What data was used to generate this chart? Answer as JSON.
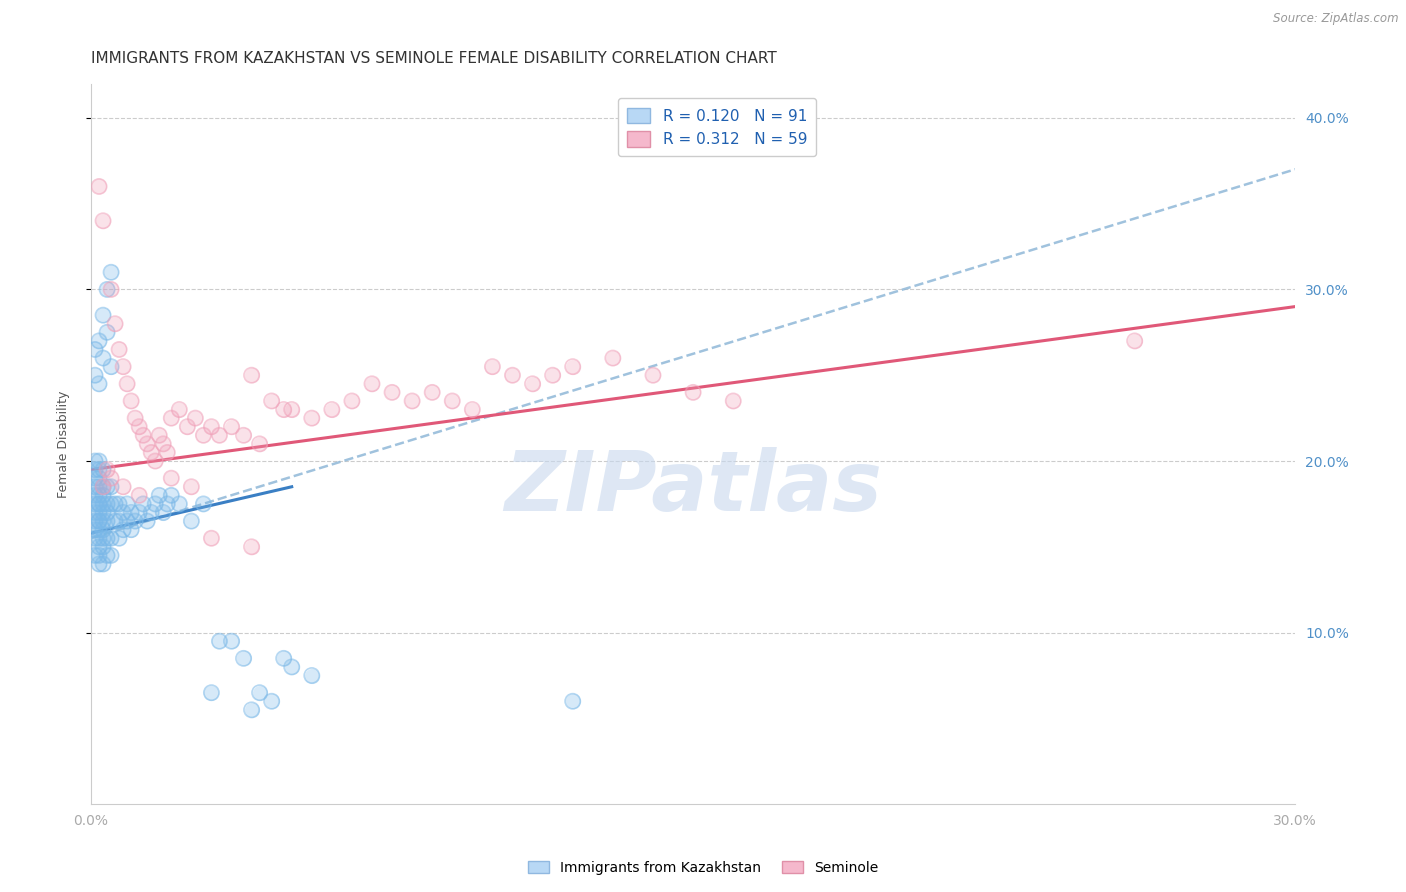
{
  "title": "IMMIGRANTS FROM KAZAKHSTAN VS SEMINOLE FEMALE DISABILITY CORRELATION CHART",
  "source": "Source: ZipAtlas.com",
  "ylabel": "Female Disability",
  "xlim": [
    0.0,
    0.3
  ],
  "ylim": [
    0.0,
    0.42
  ],
  "yticks": [
    0.1,
    0.2,
    0.3,
    0.4
  ],
  "ytick_labels": [
    "10.0%",
    "20.0%",
    "30.0%",
    "40.0%"
  ],
  "xticks": [
    0.0,
    0.05,
    0.1,
    0.15,
    0.2,
    0.25,
    0.3
  ],
  "xtick_labels": [
    "0.0%",
    "",
    "",
    "",
    "",
    "",
    "30.0%"
  ],
  "watermark": "ZIPatlas",
  "blue_scatter_x": [
    0.001,
    0.001,
    0.001,
    0.001,
    0.001,
    0.001,
    0.001,
    0.001,
    0.001,
    0.001,
    0.001,
    0.002,
    0.002,
    0.002,
    0.002,
    0.002,
    0.002,
    0.002,
    0.002,
    0.002,
    0.002,
    0.002,
    0.002,
    0.002,
    0.002,
    0.002,
    0.003,
    0.003,
    0.003,
    0.003,
    0.003,
    0.003,
    0.003,
    0.003,
    0.003,
    0.003,
    0.004,
    0.004,
    0.004,
    0.004,
    0.004,
    0.004,
    0.005,
    0.005,
    0.005,
    0.005,
    0.006,
    0.006,
    0.007,
    0.007,
    0.007,
    0.008,
    0.008,
    0.009,
    0.009,
    0.01,
    0.01,
    0.011,
    0.012,
    0.013,
    0.014,
    0.015,
    0.016,
    0.017,
    0.018,
    0.019,
    0.02,
    0.022,
    0.025,
    0.028,
    0.03,
    0.032,
    0.035,
    0.038,
    0.04,
    0.042,
    0.045,
    0.048,
    0.05,
    0.055,
    0.001,
    0.002,
    0.003,
    0.004,
    0.005,
    0.002,
    0.003,
    0.004,
    0.005,
    0.001,
    0.12
  ],
  "blue_scatter_y": [
    0.175,
    0.18,
    0.165,
    0.155,
    0.19,
    0.2,
    0.17,
    0.16,
    0.185,
    0.195,
    0.145,
    0.175,
    0.185,
    0.165,
    0.155,
    0.195,
    0.2,
    0.17,
    0.16,
    0.15,
    0.14,
    0.18,
    0.19,
    0.145,
    0.175,
    0.165,
    0.175,
    0.185,
    0.165,
    0.155,
    0.195,
    0.17,
    0.16,
    0.15,
    0.14,
    0.18,
    0.175,
    0.185,
    0.165,
    0.155,
    0.145,
    0.17,
    0.175,
    0.185,
    0.155,
    0.145,
    0.175,
    0.165,
    0.175,
    0.165,
    0.155,
    0.17,
    0.16,
    0.175,
    0.165,
    0.17,
    0.16,
    0.165,
    0.17,
    0.175,
    0.165,
    0.17,
    0.175,
    0.18,
    0.17,
    0.175,
    0.18,
    0.175,
    0.165,
    0.175,
    0.065,
    0.095,
    0.095,
    0.085,
    0.055,
    0.065,
    0.06,
    0.085,
    0.08,
    0.075,
    0.25,
    0.27,
    0.285,
    0.3,
    0.31,
    0.245,
    0.26,
    0.275,
    0.255,
    0.265,
    0.06
  ],
  "pink_scatter_x": [
    0.002,
    0.003,
    0.004,
    0.005,
    0.006,
    0.007,
    0.008,
    0.009,
    0.01,
    0.011,
    0.012,
    0.013,
    0.014,
    0.015,
    0.016,
    0.017,
    0.018,
    0.019,
    0.02,
    0.022,
    0.024,
    0.026,
    0.028,
    0.03,
    0.032,
    0.035,
    0.038,
    0.04,
    0.042,
    0.045,
    0.048,
    0.05,
    0.055,
    0.06,
    0.065,
    0.07,
    0.075,
    0.08,
    0.085,
    0.09,
    0.095,
    0.1,
    0.105,
    0.11,
    0.115,
    0.12,
    0.13,
    0.14,
    0.15,
    0.16,
    0.003,
    0.005,
    0.008,
    0.012,
    0.02,
    0.025,
    0.03,
    0.04,
    0.26
  ],
  "pink_scatter_y": [
    0.36,
    0.34,
    0.195,
    0.3,
    0.28,
    0.265,
    0.255,
    0.245,
    0.235,
    0.225,
    0.22,
    0.215,
    0.21,
    0.205,
    0.2,
    0.215,
    0.21,
    0.205,
    0.225,
    0.23,
    0.22,
    0.225,
    0.215,
    0.22,
    0.215,
    0.22,
    0.215,
    0.25,
    0.21,
    0.235,
    0.23,
    0.23,
    0.225,
    0.23,
    0.235,
    0.245,
    0.24,
    0.235,
    0.24,
    0.235,
    0.23,
    0.255,
    0.25,
    0.245,
    0.25,
    0.255,
    0.26,
    0.25,
    0.24,
    0.235,
    0.185,
    0.19,
    0.185,
    0.18,
    0.19,
    0.185,
    0.155,
    0.15,
    0.27
  ],
  "blue_line_x": [
    0.0,
    0.05
  ],
  "blue_line_y": [
    0.158,
    0.185
  ],
  "dashed_line_x": [
    0.0,
    0.3
  ],
  "dashed_line_y": [
    0.155,
    0.37
  ],
  "pink_line_x": [
    0.0,
    0.3
  ],
  "pink_line_y": [
    0.195,
    0.29
  ],
  "scatter_blue_color": "#7ab8e8",
  "scatter_pink_color": "#f0a0b8",
  "line_blue_color": "#3a7fc4",
  "line_pink_color": "#e05878",
  "dashed_line_color": "#90b8d8",
  "background_color": "#ffffff",
  "right_tick_color": "#5090c8",
  "title_fontsize": 11,
  "axis_label_fontsize": 9,
  "tick_fontsize": 10
}
